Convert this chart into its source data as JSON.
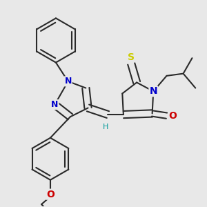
{
  "bg_color": "#e8e8e8",
  "bond_color": "#2a2a2a",
  "bond_width": 1.5,
  "atom_colors": {
    "N": "#0000cc",
    "O": "#cc0000",
    "S": "#cccc00",
    "H": "#009999",
    "C": "#2a2a2a"
  },
  "font_size": 9
}
